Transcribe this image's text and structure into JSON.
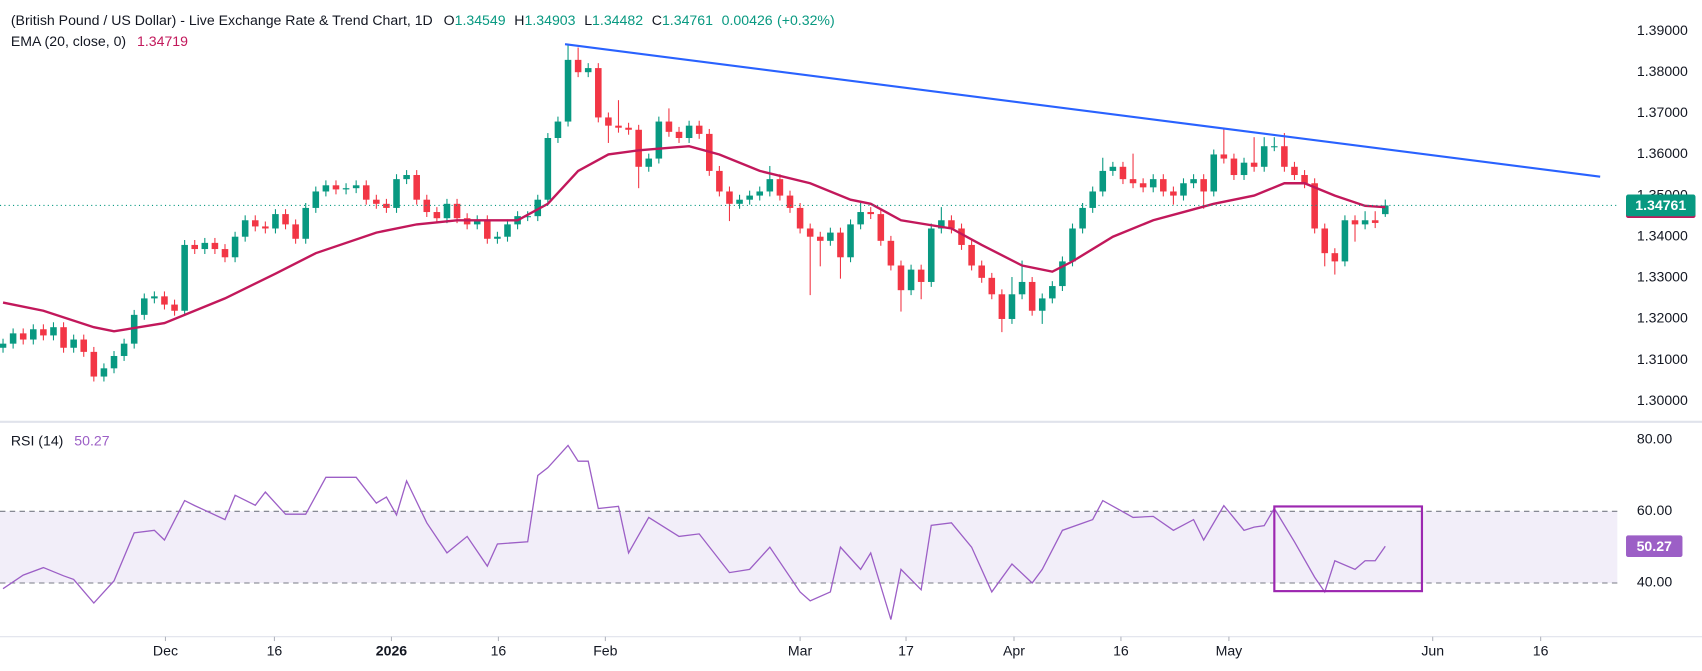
{
  "chart_data": [
    {
      "type": "candlestick",
      "title": "(British Pound / US Dollar) - Live Exchange Rate & Trend Chart, 1D",
      "ohlc": [
        {
          "label": "O",
          "value": 1.34549
        },
        {
          "label": "H",
          "value": 1.34903
        },
        {
          "label": "L",
          "value": 1.34482
        },
        {
          "label": "C",
          "value": 1.34761
        }
      ],
      "change": 0.00426,
      "change_label": "(+0.32%)",
      "up_color": "#089981",
      "down_color": "#f23645",
      "grid": false,
      "xlim": [
        -0.3,
        160
      ],
      "xticks": [
        {
          "value": 16.1,
          "label": "Dec"
        },
        {
          "value": 26.9,
          "label": "16"
        },
        {
          "value": 38.5,
          "label": "2026"
        },
        {
          "value": 49.1,
          "label": "16"
        },
        {
          "value": 59.7,
          "label": "Feb"
        },
        {
          "value": 79,
          "label": "Mar"
        },
        {
          "value": 89.5,
          "label": "17"
        },
        {
          "value": 100.2,
          "label": "Apr"
        },
        {
          "value": 110.8,
          "label": "16"
        },
        {
          "value": 121.5,
          "label": "May"
        },
        {
          "value": 141.7,
          "label": "Jun"
        },
        {
          "value": 152.4,
          "label": "16"
        }
      ],
      "ylim": [
        1.295,
        1.3974
      ],
      "yticks": [
        {
          "value": 1.39,
          "label": "1.39000"
        },
        {
          "value": 1.38,
          "label": "1.38000"
        },
        {
          "value": 1.37,
          "label": "1.37000"
        },
        {
          "value": 1.36,
          "label": "1.36000"
        },
        {
          "value": 1.35,
          "label": "1.35000"
        },
        {
          "value": 1.34,
          "label": "1.34000"
        },
        {
          "value": 1.33,
          "label": "1.33000"
        },
        {
          "value": 1.32,
          "label": "1.32000"
        },
        {
          "value": 1.31,
          "label": "1.31000"
        },
        {
          "value": 1.3,
          "label": "1.30000"
        }
      ],
      "candles": [
        [
          1.313,
          1.3152,
          1.3118,
          1.314
        ],
        [
          1.314,
          1.3177,
          1.3128,
          1.3165
        ],
        [
          1.3165,
          1.3177,
          1.3138,
          1.315
        ],
        [
          1.315,
          1.3187,
          1.3138,
          1.3175
        ],
        [
          1.3175,
          1.3187,
          1.3148,
          1.316
        ],
        [
          1.316,
          1.3192,
          1.3148,
          1.318
        ],
        [
          1.318,
          1.3192,
          1.3118,
          1.313
        ],
        [
          1.313,
          1.3162,
          1.3118,
          1.315
        ],
        [
          1.315,
          1.3162,
          1.3108,
          1.312
        ],
        [
          1.312,
          1.3132,
          1.3048,
          1.306
        ],
        [
          1.306,
          1.3092,
          1.3048,
          1.308
        ],
        [
          1.308,
          1.3122,
          1.3068,
          1.311
        ],
        [
          1.311,
          1.3152,
          1.3098,
          1.314
        ],
        [
          1.314,
          1.3222,
          1.3128,
          1.321
        ],
        [
          1.321,
          1.3262,
          1.3198,
          1.325
        ],
        [
          1.325,
          1.3267,
          1.3238,
          1.3255
        ],
        [
          1.3255,
          1.3267,
          1.3223,
          1.3235
        ],
        [
          1.3235,
          1.3247,
          1.3208,
          1.322
        ],
        [
          1.322,
          1.3392,
          1.3208,
          1.338
        ],
        [
          1.338,
          1.3392,
          1.3358,
          1.337
        ],
        [
          1.337,
          1.3397,
          1.3358,
          1.3385
        ],
        [
          1.3385,
          1.3397,
          1.3358,
          1.337
        ],
        [
          1.337,
          1.3382,
          1.3338,
          1.335
        ],
        [
          1.335,
          1.3412,
          1.3338,
          1.34
        ],
        [
          1.34,
          1.3452,
          1.3388,
          1.344
        ],
        [
          1.344,
          1.3452,
          1.3413,
          1.3425
        ],
        [
          1.3425,
          1.3437,
          1.3408,
          1.342
        ],
        [
          1.342,
          1.3467,
          1.3408,
          1.3455
        ],
        [
          1.3455,
          1.3467,
          1.3418,
          1.343
        ],
        [
          1.343,
          1.3442,
          1.3383,
          1.3395
        ],
        [
          1.3395,
          1.3482,
          1.3383,
          1.347
        ],
        [
          1.347,
          1.3522,
          1.3458,
          1.351
        ],
        [
          1.351,
          1.3537,
          1.3498,
          1.3525
        ],
        [
          1.3525,
          1.3537,
          1.3503,
          1.3515
        ],
        [
          1.3515,
          1.353,
          1.3503,
          1.3518
        ],
        [
          1.3518,
          1.3537,
          1.3506,
          1.3525
        ],
        [
          1.3525,
          1.3537,
          1.3478,
          1.349
        ],
        [
          1.349,
          1.3502,
          1.3468,
          1.348
        ],
        [
          1.348,
          1.3492,
          1.3458,
          1.347
        ],
        [
          1.347,
          1.3552,
          1.3458,
          1.354
        ],
        [
          1.354,
          1.3562,
          1.3528,
          1.355
        ],
        [
          1.355,
          1.3562,
          1.3478,
          1.349
        ],
        [
          1.349,
          1.3502,
          1.3448,
          1.346
        ],
        [
          1.346,
          1.3472,
          1.3433,
          1.3445
        ],
        [
          1.3445,
          1.3492,
          1.3433,
          1.348
        ],
        [
          1.348,
          1.3492,
          1.3433,
          1.3445
        ],
        [
          1.3445,
          1.3457,
          1.3418,
          1.343
        ],
        [
          1.343,
          1.3452,
          1.3418,
          1.344
        ],
        [
          1.344,
          1.3452,
          1.3383,
          1.3395
        ],
        [
          1.3395,
          1.3412,
          1.3383,
          1.34
        ],
        [
          1.34,
          1.3442,
          1.3388,
          1.343
        ],
        [
          1.343,
          1.3462,
          1.3418,
          1.345
        ],
        [
          1.345,
          1.3462,
          1.3438,
          1.345
        ],
        [
          1.345,
          1.3502,
          1.3438,
          1.349
        ],
        [
          1.349,
          1.3652,
          1.3478,
          1.364
        ],
        [
          1.364,
          1.3692,
          1.3628,
          1.368
        ],
        [
          1.368,
          1.3868,
          1.3668,
          1.383
        ],
        [
          1.383,
          1.386,
          1.3788,
          1.38
        ],
        [
          1.38,
          1.3822,
          1.3788,
          1.381
        ],
        [
          1.381,
          1.3822,
          1.3678,
          1.369
        ],
        [
          1.369,
          1.3702,
          1.3628,
          1.367
        ],
        [
          1.367,
          1.3732,
          1.3653,
          1.3665
        ],
        [
          1.3665,
          1.3677,
          1.3648,
          1.366
        ],
        [
          1.366,
          1.3672,
          1.3518,
          1.357
        ],
        [
          1.357,
          1.3602,
          1.3558,
          1.359
        ],
        [
          1.359,
          1.3692,
          1.3578,
          1.368
        ],
        [
          1.368,
          1.3712,
          1.3643,
          1.3655
        ],
        [
          1.3655,
          1.3667,
          1.3628,
          1.364
        ],
        [
          1.364,
          1.3682,
          1.3628,
          1.367
        ],
        [
          1.367,
          1.3682,
          1.3638,
          1.365
        ],
        [
          1.365,
          1.3662,
          1.3548,
          1.356
        ],
        [
          1.356,
          1.3572,
          1.3498,
          1.351
        ],
        [
          1.351,
          1.3522,
          1.3438,
          1.348
        ],
        [
          1.348,
          1.3502,
          1.3468,
          1.349
        ],
        [
          1.349,
          1.3512,
          1.3478,
          1.35
        ],
        [
          1.35,
          1.3522,
          1.3488,
          1.351
        ],
        [
          1.351,
          1.3572,
          1.3498,
          1.354
        ],
        [
          1.354,
          1.3552,
          1.3488,
          1.35
        ],
        [
          1.35,
          1.3512,
          1.3458,
          1.347
        ],
        [
          1.347,
          1.3482,
          1.3408,
          1.342
        ],
        [
          1.342,
          1.3432,
          1.3258,
          1.34
        ],
        [
          1.34,
          1.3412,
          1.3328,
          1.339
        ],
        [
          1.339,
          1.3422,
          1.3378,
          1.341
        ],
        [
          1.341,
          1.3422,
          1.3298,
          1.335
        ],
        [
          1.335,
          1.3442,
          1.3338,
          1.343
        ],
        [
          1.343,
          1.3482,
          1.3418,
          1.346
        ],
        [
          1.346,
          1.3472,
          1.3443,
          1.3455
        ],
        [
          1.3455,
          1.3467,
          1.3378,
          1.339
        ],
        [
          1.339,
          1.3402,
          1.3318,
          1.333
        ],
        [
          1.333,
          1.3342,
          1.3218,
          1.327
        ],
        [
          1.327,
          1.3332,
          1.3258,
          1.332
        ],
        [
          1.332,
          1.3332,
          1.3248,
          1.329
        ],
        [
          1.329,
          1.3432,
          1.3278,
          1.342
        ],
        [
          1.342,
          1.3472,
          1.3408,
          1.344
        ],
        [
          1.344,
          1.3452,
          1.3408,
          1.342
        ],
        [
          1.342,
          1.3432,
          1.3368,
          1.338
        ],
        [
          1.338,
          1.3392,
          1.3318,
          1.333
        ],
        [
          1.333,
          1.3342,
          1.3288,
          1.33
        ],
        [
          1.33,
          1.3312,
          1.3248,
          1.326
        ],
        [
          1.326,
          1.3272,
          1.3168,
          1.32
        ],
        [
          1.32,
          1.3302,
          1.3188,
          1.326
        ],
        [
          1.326,
          1.3342,
          1.3248,
          1.329
        ],
        [
          1.329,
          1.3302,
          1.3208,
          1.322
        ],
        [
          1.322,
          1.3262,
          1.3188,
          1.325
        ],
        [
          1.325,
          1.3292,
          1.3238,
          1.328
        ],
        [
          1.328,
          1.3352,
          1.3268,
          1.334
        ],
        [
          1.334,
          1.3432,
          1.3328,
          1.342
        ],
        [
          1.342,
          1.3482,
          1.3408,
          1.347
        ],
        [
          1.347,
          1.3522,
          1.3458,
          1.351
        ],
        [
          1.351,
          1.3592,
          1.3498,
          1.356
        ],
        [
          1.356,
          1.3582,
          1.3548,
          1.357
        ],
        [
          1.357,
          1.3582,
          1.3528,
          1.354
        ],
        [
          1.354,
          1.3602,
          1.3518,
          1.353
        ],
        [
          1.353,
          1.3542,
          1.3508,
          1.352
        ],
        [
          1.352,
          1.3552,
          1.3508,
          1.354
        ],
        [
          1.354,
          1.3552,
          1.3498,
          1.351
        ],
        [
          1.351,
          1.3522,
          1.3478,
          1.35
        ],
        [
          1.35,
          1.3542,
          1.3488,
          1.353
        ],
        [
          1.353,
          1.3552,
          1.3518,
          1.354
        ],
        [
          1.354,
          1.3552,
          1.3468,
          1.351
        ],
        [
          1.351,
          1.3612,
          1.3498,
          1.36
        ],
        [
          1.36,
          1.3662,
          1.3578,
          1.359
        ],
        [
          1.359,
          1.3602,
          1.3538,
          1.355
        ],
        [
          1.355,
          1.3592,
          1.3538,
          1.358
        ],
        [
          1.358,
          1.3642,
          1.3558,
          1.357
        ],
        [
          1.357,
          1.3642,
          1.3558,
          1.362
        ],
        [
          1.362,
          1.3642,
          1.3608,
          1.362
        ],
        [
          1.362,
          1.3652,
          1.3558,
          1.357
        ],
        [
          1.357,
          1.3582,
          1.3538,
          1.355
        ],
        [
          1.355,
          1.3562,
          1.3518,
          1.353
        ],
        [
          1.353,
          1.3542,
          1.3408,
          1.342
        ],
        [
          1.342,
          1.3432,
          1.3328,
          1.336
        ],
        [
          1.336,
          1.3372,
          1.3308,
          1.334
        ],
        [
          1.334,
          1.3452,
          1.3328,
          1.344
        ],
        [
          1.344,
          1.3452,
          1.3388,
          1.343
        ],
        [
          1.343,
          1.3462,
          1.3418,
          1.344
        ],
        [
          1.344,
          1.3462,
          1.3421,
          1.34335
        ],
        [
          1.34549,
          1.34903,
          1.34482,
          1.34761
        ]
      ],
      "ema": {
        "name": "EMA (20, close, 0)",
        "color": "#c2185b",
        "x": [
          0,
          4,
          9,
          11,
          16,
          22,
          27,
          31,
          37,
          41,
          45,
          51,
          54,
          57,
          60,
          63,
          68,
          71,
          75,
          80,
          84,
          86,
          89,
          94,
          97,
          101,
          104,
          106,
          110,
          114,
          117,
          120,
          124,
          127,
          129,
          132,
          135,
          137
        ],
        "values": [
          1.324,
          1.322,
          1.318,
          1.317,
          1.319,
          1.325,
          1.331,
          1.336,
          1.341,
          1.343,
          1.344,
          1.344,
          1.348,
          1.356,
          1.36,
          1.361,
          1.362,
          1.36,
          1.356,
          1.353,
          1.349,
          1.348,
          1.344,
          1.342,
          1.338,
          1.333,
          1.3315,
          1.334,
          1.34,
          1.344,
          1.346,
          1.348,
          1.35,
          1.353,
          1.353,
          1.35,
          1.3475,
          1.34719
        ]
      },
      "trendline": {
        "color": "#2962ff",
        "x": [
          55.7,
          158.3
        ],
        "values": [
          1.3868,
          1.3546
        ]
      }
    },
    {
      "type": "line",
      "name": "RSI (14)",
      "color": "#9c5fc6",
      "band": [
        40,
        60
      ],
      "band_color": "#7e57c2",
      "ylim": [
        25,
        85
      ],
      "yticks": [
        {
          "value": 40,
          "label": "40.00"
        },
        {
          "value": 60,
          "label": "60.00"
        },
        {
          "value": 80,
          "label": "80.00"
        }
      ],
      "x": [
        0,
        2,
        4,
        6,
        7,
        9,
        11,
        13,
        15,
        16,
        18,
        19,
        22,
        23,
        25,
        26,
        28,
        30,
        32,
        35,
        37,
        38,
        39,
        40,
        42,
        44,
        46,
        48,
        49,
        52,
        53,
        54,
        56,
        57,
        58,
        59,
        61,
        62,
        64,
        67,
        69,
        72,
        74,
        76,
        79,
        80,
        82,
        83,
        85,
        86,
        88,
        89,
        91,
        92,
        94,
        96,
        98,
        100,
        102,
        103,
        105,
        108,
        109,
        112,
        114,
        116,
        118,
        119,
        121,
        123,
        124,
        125,
        126,
        128,
        130,
        131,
        132,
        134,
        135,
        136,
        137
      ],
      "values": [
        38.4,
        42.2,
        44.3,
        42,
        41,
        34.4,
        40.6,
        54,
        54.7,
        52,
        63,
        61.6,
        57.7,
        64.5,
        61.7,
        65.4,
        59.2,
        59.2,
        69.5,
        69.5,
        62.3,
        64,
        59,
        68.5,
        56.8,
        48.4,
        53,
        44.7,
        50.9,
        51.5,
        70,
        72.2,
        78.4,
        74,
        74,
        60.8,
        61.4,
        48.4,
        58.3,
        53,
        53.7,
        42.9,
        43.8,
        50,
        37.5,
        35,
        37.5,
        50,
        43.8,
        48.4,
        29.8,
        43.8,
        38.1,
        56.1,
        56.8,
        50,
        37.5,
        45.3,
        40,
        43.8,
        54.7,
        57.7,
        63,
        58.3,
        58.6,
        54.7,
        57.7,
        52,
        61.6,
        54.7,
        55.6,
        56,
        60.8,
        51.5,
        41.6,
        37.5,
        46.2,
        43.8,
        46.2,
        46.2,
        50.27
      ]
    }
  ]
}
